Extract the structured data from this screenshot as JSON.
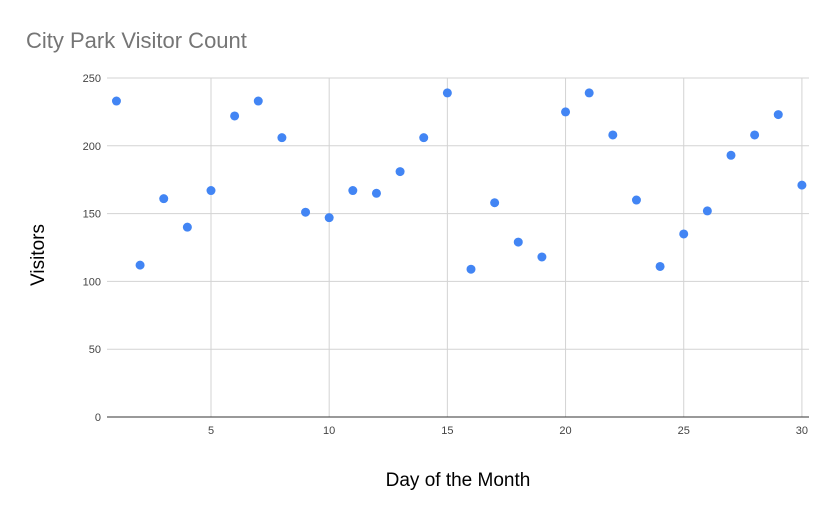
{
  "chart_data": {
    "type": "scatter",
    "title": "City Park Visitor Count",
    "xlabel": "Day of the Month",
    "ylabel": "Visitors",
    "xlim": [
      1,
      30
    ],
    "ylim": [
      0,
      250
    ],
    "x_ticks": [
      5,
      10,
      15,
      20,
      25,
      30
    ],
    "y_ticks": [
      0,
      50,
      100,
      150,
      200,
      250
    ],
    "grid": true,
    "legend": "none",
    "point_color": "#4285f4",
    "points": [
      {
        "x": 1,
        "y": 233
      },
      {
        "x": 2,
        "y": 112
      },
      {
        "x": 3,
        "y": 161
      },
      {
        "x": 4,
        "y": 140
      },
      {
        "x": 5,
        "y": 167
      },
      {
        "x": 6,
        "y": 222
      },
      {
        "x": 7,
        "y": 233
      },
      {
        "x": 8,
        "y": 206
      },
      {
        "x": 9,
        "y": 151
      },
      {
        "x": 10,
        "y": 147
      },
      {
        "x": 11,
        "y": 167
      },
      {
        "x": 12,
        "y": 165
      },
      {
        "x": 13,
        "y": 181
      },
      {
        "x": 14,
        "y": 206
      },
      {
        "x": 15,
        "y": 239
      },
      {
        "x": 16,
        "y": 109
      },
      {
        "x": 17,
        "y": 158
      },
      {
        "x": 18,
        "y": 129
      },
      {
        "x": 19,
        "y": 118
      },
      {
        "x": 20,
        "y": 225
      },
      {
        "x": 21,
        "y": 239
      },
      {
        "x": 22,
        "y": 208
      },
      {
        "x": 23,
        "y": 160
      },
      {
        "x": 24,
        "y": 111
      },
      {
        "x": 25,
        "y": 135
      },
      {
        "x": 26,
        "y": 152
      },
      {
        "x": 27,
        "y": 193
      },
      {
        "x": 28,
        "y": 208
      },
      {
        "x": 29,
        "y": 223
      },
      {
        "x": 30,
        "y": 171
      }
    ]
  }
}
